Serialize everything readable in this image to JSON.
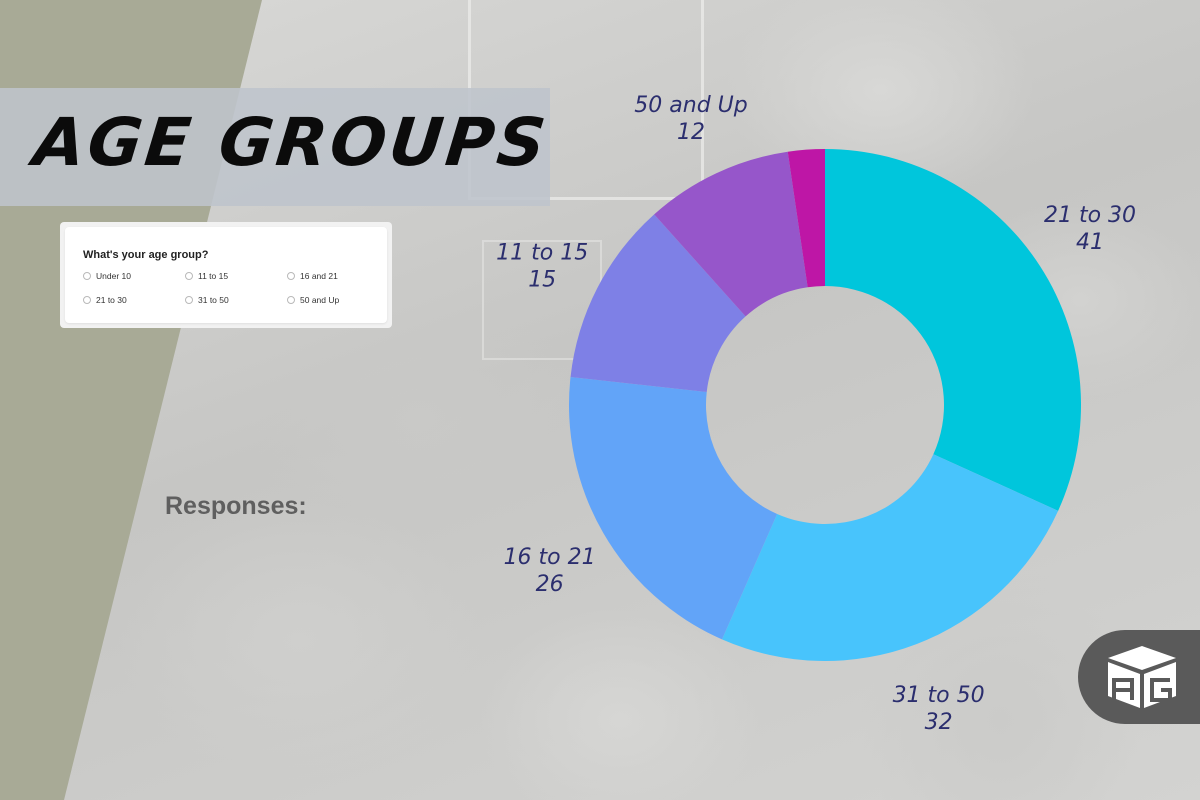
{
  "title": "AGE GROUPS",
  "survey": {
    "question": "What's your age group?",
    "options": [
      "Under 10",
      "11 to 15",
      "16 and 21",
      "21 to 30",
      "31 to 50",
      "50 and Up"
    ]
  },
  "responses_label": "Responses:",
  "chart_data": {
    "type": "pie",
    "style": "donut",
    "start": "top",
    "direction": "clockwise",
    "title": "",
    "legend": "none",
    "slices": [
      {
        "label": "21 to 30",
        "value": 41,
        "color": "#00c6dc"
      },
      {
        "label": "31 to 50",
        "value": 32,
        "color": "#48c4fc"
      },
      {
        "label": "16 to 21",
        "value": 26,
        "color": "#62a4f8"
      },
      {
        "label": "11 to 15",
        "value": 15,
        "color": "#7e80e6"
      },
      {
        "label": "50 and Up",
        "value": 12,
        "color": "#9656ca"
      },
      {
        "label": "",
        "value": 3,
        "color": "#be16a6"
      }
    ],
    "label_color": "#2b2e6e"
  },
  "logo": {
    "icon": "box-logo-icon",
    "color": "#ffffff"
  }
}
